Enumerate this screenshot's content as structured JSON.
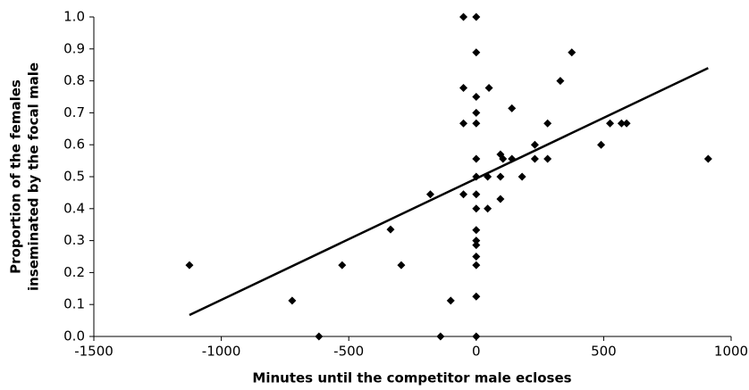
{
  "chart_data": {
    "type": "scatter",
    "xlabel": "Minutes until the competitor male ecloses",
    "ylabel": [
      "Proportion of the females",
      "inseminated by the focal male"
    ],
    "xlim": [
      -1500,
      1000
    ],
    "xticks": [
      -1500,
      -1000,
      -500,
      0,
      500,
      1000
    ],
    "ylim": [
      0,
      1.0
    ],
    "yticks": [
      {
        "value": 0,
        "label": "0.0"
      },
      0.1,
      0.2,
      0.3,
      0.4,
      0.5,
      0.6,
      0.7,
      0.8,
      0.9,
      {
        "value": 1,
        "label": "1.0"
      }
    ],
    "color": "#000000",
    "x": [
      -1125,
      -722,
      -617,
      -526,
      -336,
      -294,
      -180,
      -140,
      -100,
      -50,
      0,
      0,
      -50,
      -50,
      -50,
      0,
      0,
      0,
      0,
      0,
      0,
      0,
      0,
      0,
      0,
      0,
      0,
      0,
      0,
      50,
      45,
      45,
      95,
      95,
      95,
      105,
      140,
      140,
      180,
      230,
      230,
      280,
      280,
      330,
      375,
      490,
      525,
      570,
      590,
      910
    ],
    "y": [
      0.223,
      0.112,
      0.0,
      0.223,
      0.335,
      0.223,
      0.445,
      0.0,
      0.112,
      1.0,
      1.0,
      0.889,
      0.778,
      0.667,
      0.445,
      0.75,
      0.7,
      0.667,
      0.556,
      0.5,
      0.445,
      0.4,
      0.333,
      0.3,
      0.286,
      0.25,
      0.223,
      0.125,
      0.0,
      0.778,
      0.5,
      0.4,
      0.43,
      0.5,
      0.57,
      0.556,
      0.714,
      0.556,
      0.5,
      0.6,
      0.556,
      0.667,
      0.556,
      0.8,
      0.889,
      0.6,
      0.667,
      0.667,
      0.667,
      0.556
    ],
    "trendline": {
      "x": [
        -1125,
        910
      ],
      "y": [
        0.067,
        0.84
      ]
    }
  }
}
